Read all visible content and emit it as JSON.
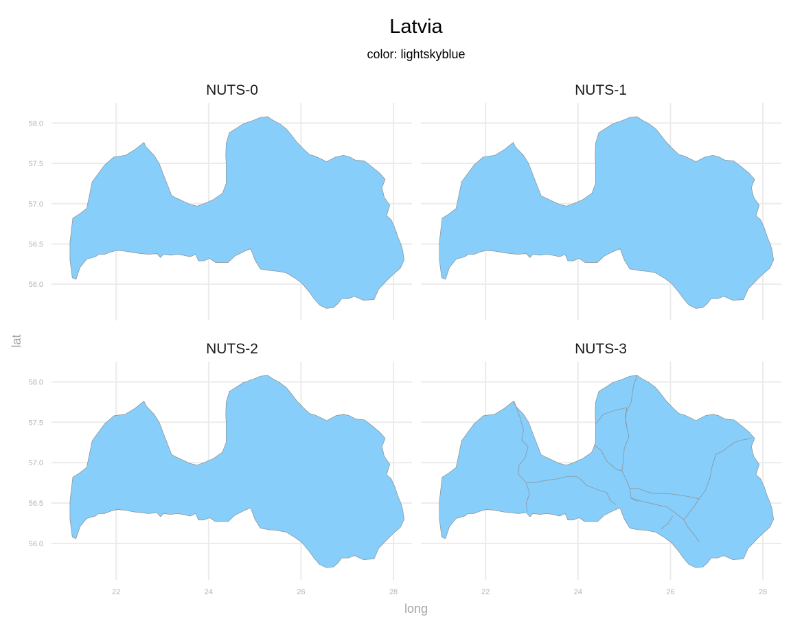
{
  "chart_data": {
    "type": "map",
    "title": "Latvia",
    "subtitle": "color: lightskyblue",
    "xlabel": "long",
    "ylabel": "lat",
    "fill_color": "#87cefa",
    "outline_color": "#8c8c8c",
    "grid": true,
    "x_ticks": [
      22,
      24,
      26,
      28
    ],
    "y_ticks": [
      56.0,
      56.5,
      57.0,
      57.5,
      58.0
    ],
    "x_tick_labels": [
      "22",
      "24",
      "26",
      "28"
    ],
    "y_tick_labels": [
      "56.0",
      "56.5",
      "57.0",
      "57.5",
      "58.0"
    ],
    "xlim": [
      20.6,
      28.4
    ],
    "ylim": [
      55.55,
      58.25
    ],
    "panels": [
      {
        "label": "NUTS-0",
        "regions": 1
      },
      {
        "label": "NUTS-1",
        "regions": 1
      },
      {
        "label": "NUTS-2",
        "regions": 1
      },
      {
        "label": "NUTS-3",
        "regions": 6
      }
    ],
    "outline": [
      [
        21.05,
        56.08
      ],
      [
        21.13,
        56.06
      ],
      [
        21.22,
        56.21
      ],
      [
        21.36,
        56.31
      ],
      [
        21.55,
        56.34
      ],
      [
        21.62,
        56.37
      ],
      [
        21.75,
        56.37
      ],
      [
        21.88,
        56.4
      ],
      [
        22.02,
        56.42
      ],
      [
        22.2,
        56.41
      ],
      [
        22.4,
        56.39
      ],
      [
        22.55,
        56.38
      ],
      [
        22.7,
        56.37
      ],
      [
        22.88,
        56.38
      ],
      [
        22.96,
        56.33
      ],
      [
        23.02,
        56.37
      ],
      [
        23.18,
        56.36
      ],
      [
        23.32,
        56.37
      ],
      [
        23.45,
        56.36
      ],
      [
        23.6,
        56.34
      ],
      [
        23.72,
        56.37
      ],
      [
        23.78,
        56.29
      ],
      [
        23.9,
        56.29
      ],
      [
        24.02,
        56.32
      ],
      [
        24.15,
        56.27
      ],
      [
        24.25,
        56.27
      ],
      [
        24.42,
        56.27
      ],
      [
        24.57,
        56.35
      ],
      [
        24.78,
        56.41
      ],
      [
        24.91,
        56.44
      ],
      [
        25.0,
        56.3
      ],
      [
        25.12,
        56.19
      ],
      [
        25.31,
        56.17
      ],
      [
        25.5,
        56.16
      ],
      [
        25.68,
        56.14
      ],
      [
        25.88,
        56.07
      ],
      [
        26.02,
        56.01
      ],
      [
        26.18,
        55.9
      ],
      [
        26.28,
        55.82
      ],
      [
        26.4,
        55.74
      ],
      [
        26.55,
        55.7
      ],
      [
        26.7,
        55.71
      ],
      [
        26.8,
        55.76
      ],
      [
        26.88,
        55.82
      ],
      [
        27.02,
        55.82
      ],
      [
        27.15,
        55.85
      ],
      [
        27.35,
        55.8
      ],
      [
        27.58,
        55.81
      ],
      [
        27.68,
        55.94
      ],
      [
        27.9,
        56.07
      ],
      [
        28.05,
        56.15
      ],
      [
        28.15,
        56.2
      ],
      [
        28.23,
        56.3
      ],
      [
        28.2,
        56.42
      ],
      [
        28.16,
        56.5
      ],
      [
        28.1,
        56.58
      ],
      [
        28.03,
        56.7
      ],
      [
        27.95,
        56.8
      ],
      [
        27.85,
        56.85
      ],
      [
        27.92,
        56.98
      ],
      [
        27.8,
        57.08
      ],
      [
        27.75,
        57.2
      ],
      [
        27.82,
        57.3
      ],
      [
        27.7,
        57.38
      ],
      [
        27.55,
        57.45
      ],
      [
        27.37,
        57.53
      ],
      [
        27.18,
        57.54
      ],
      [
        27.05,
        57.58
      ],
      [
        26.92,
        57.6
      ],
      [
        26.75,
        57.58
      ],
      [
        26.55,
        57.52
      ],
      [
        26.45,
        57.55
      ],
      [
        26.3,
        57.59
      ],
      [
        26.18,
        57.61
      ],
      [
        26.05,
        57.68
      ],
      [
        25.9,
        57.77
      ],
      [
        25.78,
        57.86
      ],
      [
        25.68,
        57.93
      ],
      [
        25.54,
        57.99
      ],
      [
        25.38,
        58.04
      ],
      [
        25.28,
        58.08
      ],
      [
        25.12,
        58.07
      ],
      [
        24.95,
        58.03
      ],
      [
        24.75,
        57.99
      ],
      [
        24.45,
        57.88
      ],
      [
        24.38,
        57.75
      ],
      [
        24.37,
        57.6
      ],
      [
        24.38,
        57.48
      ],
      [
        24.38,
        57.25
      ],
      [
        24.3,
        57.13
      ],
      [
        24.1,
        57.05
      ],
      [
        23.9,
        57.0
      ],
      [
        23.75,
        56.97
      ],
      [
        23.6,
        56.99
      ],
      [
        23.45,
        57.03
      ],
      [
        23.3,
        57.07
      ],
      [
        23.2,
        57.1
      ],
      [
        23.05,
        57.32
      ],
      [
        22.93,
        57.5
      ],
      [
        22.82,
        57.6
      ],
      [
        22.65,
        57.7
      ],
      [
        22.6,
        57.76
      ],
      [
        22.4,
        57.67
      ],
      [
        22.2,
        57.6
      ],
      [
        21.95,
        57.58
      ],
      [
        21.75,
        57.48
      ],
      [
        21.62,
        57.38
      ],
      [
        21.48,
        57.27
      ],
      [
        21.42,
        57.1
      ],
      [
        21.36,
        56.94
      ],
      [
        21.2,
        56.87
      ],
      [
        21.06,
        56.82
      ],
      [
        21.03,
        56.67
      ],
      [
        21.0,
        56.52
      ],
      [
        21.0,
        56.3
      ],
      [
        21.05,
        56.08
      ]
    ],
    "nuts3_borders": [
      [
        [
          22.62,
          57.76
        ],
        [
          22.68,
          57.66
        ],
        [
          22.75,
          57.55
        ],
        [
          22.82,
          57.4
        ],
        [
          22.78,
          57.28
        ],
        [
          22.92,
          57.2
        ],
        [
          22.85,
          57.05
        ],
        [
          22.72,
          56.97
        ],
        [
          22.72,
          56.85
        ],
        [
          22.88,
          56.75
        ],
        [
          22.95,
          56.62
        ],
        [
          22.88,
          56.5
        ],
        [
          22.9,
          56.39
        ]
      ],
      [
        [
          22.88,
          56.75
        ],
        [
          23.05,
          56.75
        ],
        [
          23.3,
          56.78
        ],
        [
          23.55,
          56.8
        ],
        [
          23.78,
          56.83
        ],
        [
          23.95,
          56.83
        ],
        [
          24.05,
          56.8
        ],
        [
          24.18,
          56.72
        ],
        [
          24.4,
          56.67
        ],
        [
          24.62,
          56.63
        ],
        [
          24.7,
          56.53
        ],
        [
          24.82,
          56.48
        ]
      ],
      [
        [
          24.35,
          57.22
        ],
        [
          24.5,
          57.15
        ],
        [
          24.62,
          57.02
        ],
        [
          24.82,
          56.92
        ],
        [
          24.95,
          56.9
        ],
        [
          25.05,
          56.78
        ],
        [
          25.12,
          56.68
        ],
        [
          25.15,
          56.56
        ],
        [
          25.3,
          56.52
        ]
      ],
      [
        [
          24.38,
          57.48
        ],
        [
          24.55,
          57.6
        ],
        [
          24.82,
          57.65
        ],
        [
          25.05,
          57.68
        ],
        [
          25.03,
          57.5
        ],
        [
          25.1,
          57.32
        ],
        [
          25.0,
          57.18
        ],
        [
          24.98,
          57.02
        ],
        [
          24.95,
          56.9
        ]
      ],
      [
        [
          25.28,
          58.08
        ],
        [
          25.2,
          57.95
        ],
        [
          25.15,
          57.75
        ],
        [
          25.02,
          57.6
        ],
        [
          25.05,
          57.45
        ],
        [
          25.1,
          57.32
        ]
      ],
      [
        [
          25.15,
          56.56
        ],
        [
          25.4,
          56.52
        ],
        [
          25.7,
          56.48
        ],
        [
          25.93,
          56.45
        ],
        [
          26.1,
          56.38
        ],
        [
          26.28,
          56.3
        ],
        [
          26.38,
          56.2
        ],
        [
          26.55,
          56.08
        ],
        [
          26.62,
          56.02
        ]
      ],
      [
        [
          26.05,
          56.34
        ],
        [
          25.95,
          56.25
        ],
        [
          25.8,
          56.18
        ]
      ],
      [
        [
          27.75,
          57.3
        ],
        [
          27.55,
          57.28
        ],
        [
          27.38,
          57.25
        ],
        [
          27.15,
          57.15
        ],
        [
          26.98,
          57.1
        ],
        [
          26.9,
          56.95
        ],
        [
          26.85,
          56.8
        ],
        [
          26.75,
          56.65
        ],
        [
          26.62,
          56.55
        ],
        [
          26.5,
          56.45
        ],
        [
          26.3,
          56.3
        ]
      ],
      [
        [
          26.62,
          56.55
        ],
        [
          26.4,
          56.58
        ],
        [
          26.18,
          56.6
        ],
        [
          25.92,
          56.62
        ],
        [
          25.6,
          56.62
        ],
        [
          25.3,
          56.68
        ],
        [
          25.12,
          56.68
        ]
      ]
    ]
  }
}
